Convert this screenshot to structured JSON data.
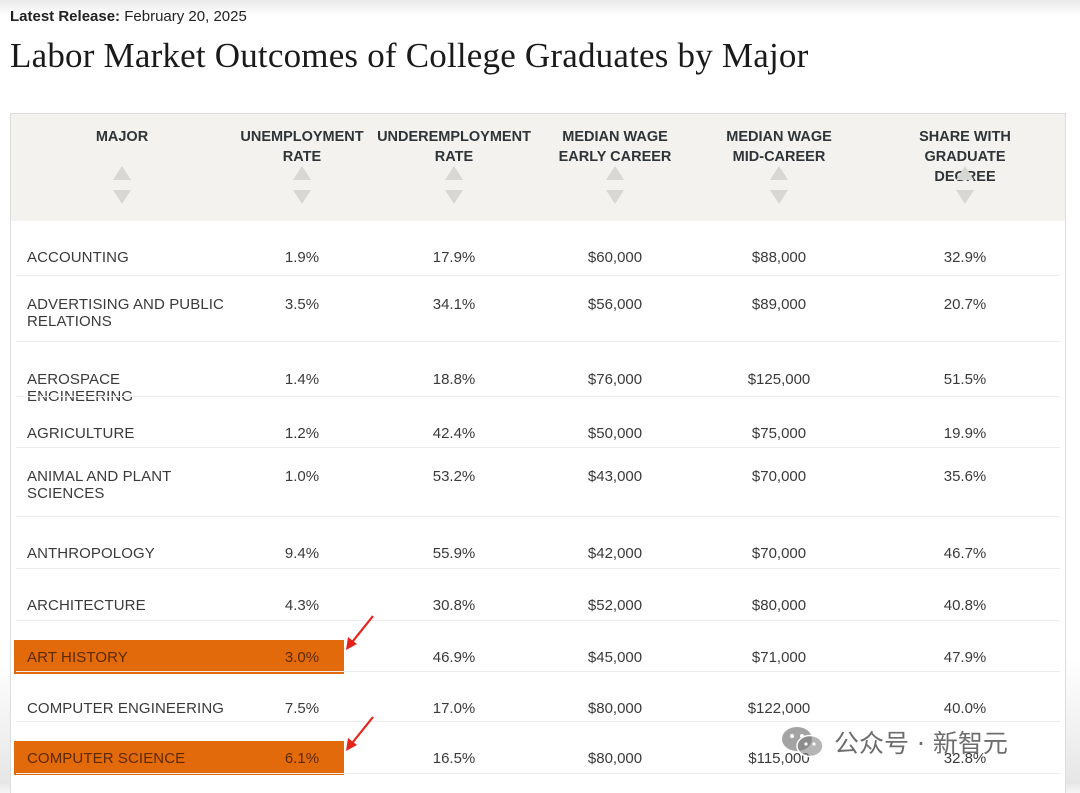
{
  "header": {
    "release_label": "Latest Release:",
    "release_date": "February 20, 2025",
    "title": "Labor Market Outcomes of College Graduates by Major"
  },
  "table": {
    "columns": [
      "MAJOR",
      "UNEMPLOYMENT\nRATE",
      "UNDEREMPLOYMENT\nRATE",
      "MEDIAN WAGE\nEARLY CAREER",
      "MEDIAN WAGE\nMID-CAREER",
      "SHARE WITH GRADUATE\nDEGREE"
    ],
    "rows": [
      {
        "major": "ACCOUNTING",
        "unemployment": "1.9%",
        "underemployment": "17.9%",
        "early": "$60,000",
        "mid": "$88,000",
        "grad": "32.9%",
        "highlighted": false
      },
      {
        "major": "ADVERTISING AND PUBLIC RELATIONS",
        "unemployment": "3.5%",
        "underemployment": "34.1%",
        "early": "$56,000",
        "mid": "$89,000",
        "grad": "20.7%",
        "highlighted": false
      },
      {
        "major": "AEROSPACE ENGINEERING",
        "unemployment": "1.4%",
        "underemployment": "18.8%",
        "early": "$76,000",
        "mid": "$125,000",
        "grad": "51.5%",
        "highlighted": false
      },
      {
        "major": "AGRICULTURE",
        "unemployment": "1.2%",
        "underemployment": "42.4%",
        "early": "$50,000",
        "mid": "$75,000",
        "grad": "19.9%",
        "highlighted": false
      },
      {
        "major": "ANIMAL AND PLANT SCIENCES",
        "unemployment": "1.0%",
        "underemployment": "53.2%",
        "early": "$43,000",
        "mid": "$70,000",
        "grad": "35.6%",
        "highlighted": false
      },
      {
        "major": "ANTHROPOLOGY",
        "unemployment": "9.4%",
        "underemployment": "55.9%",
        "early": "$42,000",
        "mid": "$70,000",
        "grad": "46.7%",
        "highlighted": false
      },
      {
        "major": "ARCHITECTURE",
        "unemployment": "4.3%",
        "underemployment": "30.8%",
        "early": "$52,000",
        "mid": "$80,000",
        "grad": "40.8%",
        "highlighted": false
      },
      {
        "major": "ART HISTORY",
        "unemployment": "3.0%",
        "underemployment": "46.9%",
        "early": "$45,000",
        "mid": "$71,000",
        "grad": "47.9%",
        "highlighted": true
      },
      {
        "major": "COMPUTER ENGINEERING",
        "unemployment": "7.5%",
        "underemployment": "17.0%",
        "early": "$80,000",
        "mid": "$122,000",
        "grad": "40.0%",
        "highlighted": false
      },
      {
        "major": "COMPUTER SCIENCE",
        "unemployment": "6.1%",
        "underemployment": "16.5%",
        "early": "$80,000",
        "mid": "$115,000",
        "grad": "32.8%",
        "highlighted": true
      }
    ]
  },
  "colors": {
    "highlight": "#e36a0b",
    "arrow": "#e5231b",
    "header_bg": "#f3f2ee"
  },
  "watermark": {
    "text": "公众号 · 新智元",
    "icon": "wechat-logo-icon"
  }
}
